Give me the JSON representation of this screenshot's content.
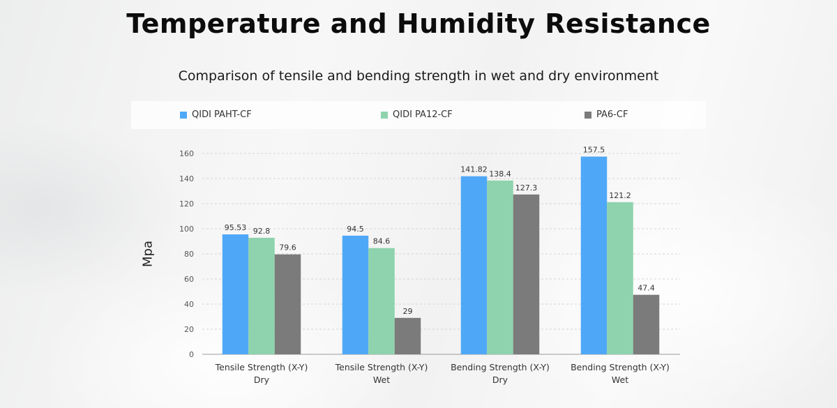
{
  "colors": {
    "paht": "#4fa8f7",
    "pa12": "#8ed3ad",
    "pa6": "#7b7b7b"
  },
  "chart_data": {
    "type": "bar",
    "title": "Temperature and Humidity Resistance",
    "subtitle": "Comparison of tensile and bending strength in wet and dry environment",
    "ylabel": "Mpa",
    "ylim": [
      0,
      160
    ],
    "yticks": [
      0,
      20,
      40,
      60,
      80,
      100,
      120,
      140,
      160
    ],
    "grid": true,
    "legend_position": "top",
    "categories": [
      [
        "Tensile Strength (X-Y)",
        "Dry"
      ],
      [
        "Tensile Strength (X-Y)",
        "Wet"
      ],
      [
        "Bending Strength (X-Y)",
        "Dry"
      ],
      [
        "Bending Strength (X-Y)",
        "Wet"
      ]
    ],
    "series": [
      {
        "name": "QIDI PAHT-CF",
        "color": "#4fa8f7",
        "values": [
          95.53,
          94.5,
          141.82,
          157.5
        ],
        "labels": [
          "95.53",
          "94.5",
          "141.82",
          "157.5"
        ]
      },
      {
        "name": "QIDI PA12-CF",
        "color": "#8ed3ad",
        "values": [
          92.8,
          84.6,
          138.4,
          121.2
        ],
        "labels": [
          "92.8",
          "84.6",
          "138.4",
          "121.2"
        ]
      },
      {
        "name": "PA6-CF",
        "color": "#7b7b7b",
        "values": [
          79.6,
          29,
          127.3,
          47.4
        ],
        "labels": [
          "79.6",
          "29",
          "127.3",
          "47.4"
        ]
      }
    ]
  }
}
